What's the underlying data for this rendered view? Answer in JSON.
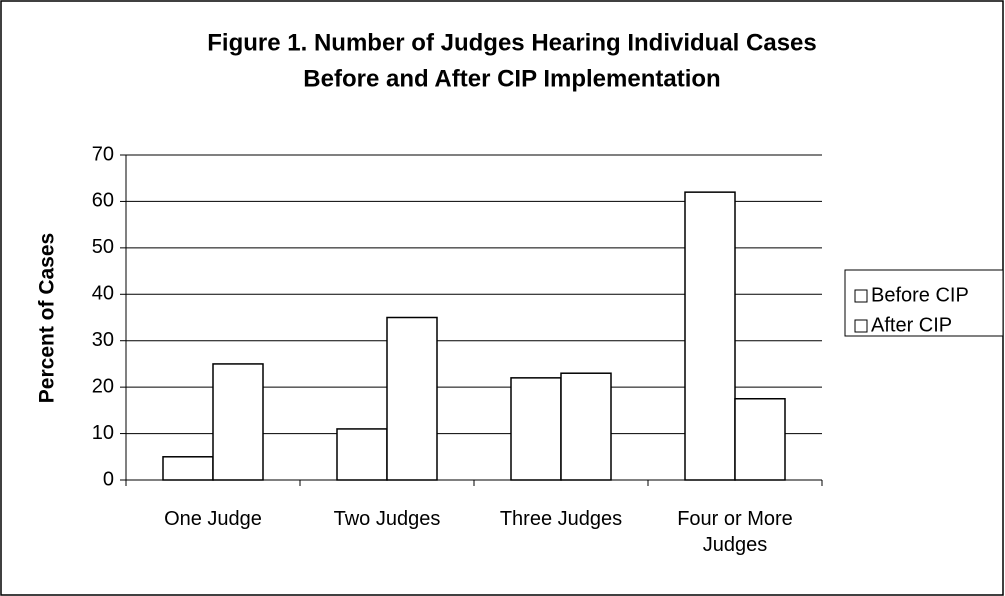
{
  "chart_data": {
    "type": "bar",
    "title": "Figure 1. Number of Judges Hearing Individual Cases",
    "subtitle": "Before and After CIP Implementation",
    "y_label": "Percent of Cases",
    "categories": [
      "One Judge",
      "Two Judges",
      "Three Judges",
      "Four or More Judges"
    ],
    "series": [
      {
        "name": "Before CIP",
        "color": "#ffffff",
        "values": [
          5,
          11,
          22,
          62
        ]
      },
      {
        "name": "After CIP",
        "color": "#ffffff",
        "values": [
          25,
          35,
          23,
          17.5
        ]
      }
    ],
    "ylim": [
      0,
      70
    ],
    "yticks": [
      0,
      10,
      20,
      30,
      40,
      50,
      60,
      70
    ],
    "grid": true,
    "legend": "right"
  }
}
